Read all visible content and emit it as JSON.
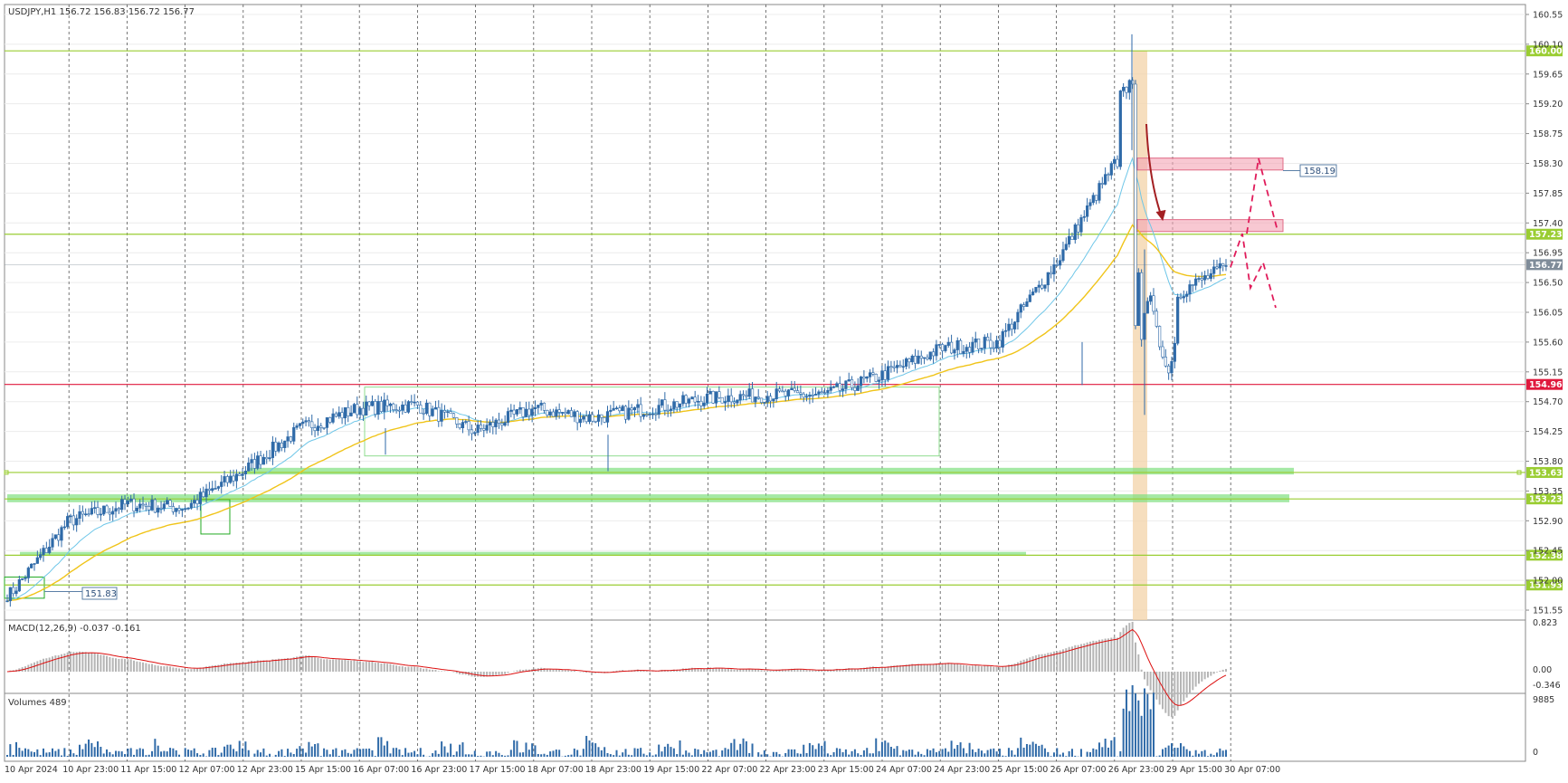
{
  "symbol_info": {
    "text": "USDJPY,H1  156.72 156.83 156.72 156.77"
  },
  "macd": {
    "label": "MACD(12,26,9) -0.037 -0.161",
    "axis": [
      "0.823",
      "0.00",
      "-0.346"
    ]
  },
  "volumes": {
    "label": "Volumes 489",
    "axis": [
      "9885",
      "0"
    ]
  },
  "price_axis": [
    "160.55",
    "160.10",
    "159.65",
    "159.20",
    "158.75",
    "158.30",
    "157.85",
    "157.40",
    "156.95",
    "156.50",
    "156.05",
    "155.60",
    "155.15",
    "154.70",
    "154.25",
    "153.80",
    "153.35",
    "152.90",
    "152.45",
    "152.00",
    "151.55"
  ],
  "time_axis": [
    "10 Apr 2024",
    "10 Apr 23:00",
    "11 Apr 15:00",
    "12 Apr 07:00",
    "12 Apr 23:00",
    "15 Apr 15:00",
    "16 Apr 07:00",
    "16 Apr 23:00",
    "17 Apr 15:00",
    "18 Apr 07:00",
    "18 Apr 23:00",
    "19 Apr 15:00",
    "22 Apr 07:00",
    "22 Apr 23:00",
    "23 Apr 15:00",
    "24 Apr 07:00",
    "24 Apr 23:00",
    "25 Apr 15:00",
    "26 Apr 07:00",
    "26 Apr 23:00",
    "29 Apr 15:00",
    "30 Apr 07:00"
  ],
  "levels": [
    {
      "price": 160.0,
      "label": "160.00",
      "color": "#9acd32"
    },
    {
      "price": 157.23,
      "label": "157.23",
      "color": "#9acd32"
    },
    {
      "price": 156.77,
      "label": "156.77",
      "color": "#7f8c99"
    },
    {
      "price": 154.96,
      "label": "154.96",
      "color": "#e0193d"
    },
    {
      "price": 153.63,
      "label": "153.63",
      "color": "#9acd32"
    },
    {
      "price": 153.23,
      "label": "153.23",
      "color": "#9acd32"
    },
    {
      "price": 152.38,
      "label": "152.38",
      "color": "#9acd32"
    },
    {
      "price": 151.93,
      "label": "151.93",
      "color": "#9acd32"
    }
  ],
  "annotations": {
    "resistance_label": "158.19",
    "support_label": "151.83"
  },
  "chart_data": {
    "type": "candlestick",
    "symbol": "USDJPY",
    "timeframe": "H1",
    "ylim": [
      151.4,
      160.7
    ],
    "key_closes": [
      {
        "time": "10 Apr 2024",
        "price": 151.8
      },
      {
        "time": "10 Apr 23:00",
        "price": 152.9
      },
      {
        "time": "11 Apr 15:00",
        "price": 153.15
      },
      {
        "time": "12 Apr 07:00",
        "price": 153.1
      },
      {
        "time": "12 Apr 23:00",
        "price": 153.65
      },
      {
        "time": "15 Apr 15:00",
        "price": 154.3
      },
      {
        "time": "16 Apr 07:00",
        "price": 154.6
      },
      {
        "time": "16 Apr 23:00",
        "price": 154.65
      },
      {
        "time": "17 Apr 15:00",
        "price": 154.25
      },
      {
        "time": "18 Apr 07:00",
        "price": 154.6
      },
      {
        "time": "18 Apr 23:00",
        "price": 154.45
      },
      {
        "time": "19 Apr 15:00",
        "price": 154.6
      },
      {
        "time": "22 Apr 07:00",
        "price": 154.75
      },
      {
        "time": "22 Apr 23:00",
        "price": 154.8
      },
      {
        "time": "23 Apr 15:00",
        "price": 154.8
      },
      {
        "time": "24 Apr 07:00",
        "price": 155.1
      },
      {
        "time": "24 Apr 23:00",
        "price": 155.5
      },
      {
        "time": "25 Apr 15:00",
        "price": 155.6
      },
      {
        "time": "26 Apr 07:00",
        "price": 156.8
      },
      {
        "time": "26 Apr 23:00",
        "price": 158.3
      },
      {
        "time": "29 Apr 15:00",
        "price": 156.3
      },
      {
        "time": "30 Apr 07:00",
        "price": 156.77
      }
    ]
  }
}
